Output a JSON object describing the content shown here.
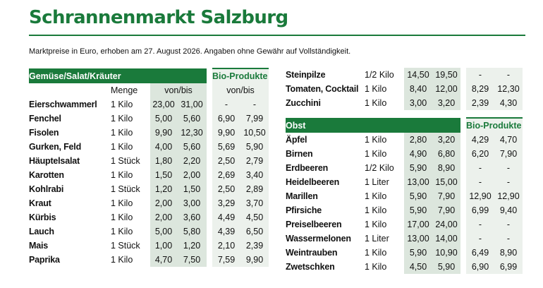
{
  "title": "Schrannenmarkt Salzburg",
  "subtitle": "Marktpreise in Euro, erhoben am 27. August 2026. Angaben ohne Gewähr auf Vollständigkeit.",
  "colors": {
    "brand": "#1a7a3b",
    "shade_dark": "#dce6dd",
    "shade_light": "#ecf1ec"
  },
  "veg": {
    "header": "Gemüse/Salat/Kräuter",
    "bio_header": "Bio-Produkte",
    "col_menge": "Menge",
    "col_vonbis": "von/bis",
    "col_bio_vonbis": "von/bis",
    "rows": [
      {
        "name": "Eierschwammerl",
        "menge": "1 Kilo",
        "von": "23,00",
        "bis": "31,00",
        "bio_von": "-",
        "bio_bis": "-"
      },
      {
        "name": "Fenchel",
        "menge": "1 Kilo",
        "von": "5,00",
        "bis": "5,60",
        "bio_von": "6,90",
        "bio_bis": "7,99"
      },
      {
        "name": "Fisolen",
        "menge": "1 Kilo",
        "von": "9,90",
        "bis": "12,30",
        "bio_von": "9,90",
        "bio_bis": "10,50"
      },
      {
        "name": "Gurken, Feld",
        "menge": "1 Kilo",
        "von": "4,00",
        "bis": "5,60",
        "bio_von": "5,69",
        "bio_bis": "5,90"
      },
      {
        "name": "Häuptelsalat",
        "menge": "1 Stück",
        "von": "1,80",
        "bis": "2,20",
        "bio_von": "2,50",
        "bio_bis": "2,79"
      },
      {
        "name": "Karotten",
        "menge": "1 Kilo",
        "von": "1,50",
        "bis": "2,00",
        "bio_von": "2,69",
        "bio_bis": "3,40"
      },
      {
        "name": "Kohlrabi",
        "menge": "1 Stück",
        "von": "1,20",
        "bis": "1,50",
        "bio_von": "2,50",
        "bio_bis": "2,89"
      },
      {
        "name": "Kraut",
        "menge": "1 Kilo",
        "von": "2,00",
        "bis": "3,00",
        "bio_von": "3,29",
        "bio_bis": "3,70"
      },
      {
        "name": "Kürbis",
        "menge": "1 Kilo",
        "von": "2,00",
        "bis": "3,60",
        "bio_von": "4,49",
        "bio_bis": "4,50"
      },
      {
        "name": "Lauch",
        "menge": "1 Kilo",
        "von": "5,00",
        "bis": "5,80",
        "bio_von": "4,39",
        "bio_bis": "6,50"
      },
      {
        "name": "Mais",
        "menge": "1 Stück",
        "von": "1,00",
        "bis": "1,20",
        "bio_von": "2,10",
        "bio_bis": "2,39"
      },
      {
        "name": "Paprika",
        "menge": "1 Kilo",
        "von": "4,70",
        "bis": "7,50",
        "bio_von": "7,59",
        "bio_bis": "9,90"
      }
    ]
  },
  "extra_veg": {
    "rows": [
      {
        "name": "Steinpilze",
        "menge": "1/2 Kilo",
        "von": "14,50",
        "bis": "19,50",
        "bio_von": "-",
        "bio_bis": "-"
      },
      {
        "name": "Tomaten, Cocktail",
        "menge": "1 Kilo",
        "von": "8,40",
        "bis": "12,00",
        "bio_von": "8,29",
        "bio_bis": "12,30"
      },
      {
        "name": "Zucchini",
        "menge": "1 Kilo",
        "von": "3,00",
        "bis": "3,20",
        "bio_von": "2,39",
        "bio_bis": "4,30"
      }
    ]
  },
  "fruit": {
    "header": "Obst",
    "bio_header": "Bio-Produkte",
    "rows": [
      {
        "name": "Äpfel",
        "menge": "1 Kilo",
        "von": "2,80",
        "bis": "3,20",
        "bio_von": "4,29",
        "bio_bis": "4,70"
      },
      {
        "name": "Birnen",
        "menge": "1 Kilo",
        "von": "4,90",
        "bis": "6,80",
        "bio_von": "6,20",
        "bio_bis": "7,90"
      },
      {
        "name": "Erdbeeren",
        "menge": "1/2 Kilo",
        "von": "5,90",
        "bis": "8,90",
        "bio_von": "-",
        "bio_bis": "-"
      },
      {
        "name": "Heidelbeeren",
        "menge": "1 Liter",
        "von": "13,00",
        "bis": "15,00",
        "bio_von": "-",
        "bio_bis": "-"
      },
      {
        "name": "Marillen",
        "menge": "1 Kilo",
        "von": "5,90",
        "bis": "7,90",
        "bio_von": "12,90",
        "bio_bis": "12,90"
      },
      {
        "name": "Pfirsiche",
        "menge": "1 Kilo",
        "von": "5,90",
        "bis": "7,90",
        "bio_von": "6,99",
        "bio_bis": "9,40"
      },
      {
        "name": "Preiselbeeren",
        "menge": "1 Kilo",
        "von": "17,00",
        "bis": "24,00",
        "bio_von": "-",
        "bio_bis": "-"
      },
      {
        "name": "Wassermelonen",
        "menge": "1 Liter",
        "von": "13,00",
        "bis": "14,00",
        "bio_von": "-",
        "bio_bis": "-"
      },
      {
        "name": "Weintrauben",
        "menge": "1 Kilo",
        "von": "5,90",
        "bis": "10,90",
        "bio_von": "6,49",
        "bio_bis": "8,90"
      },
      {
        "name": "Zwetschken",
        "menge": "1 Kilo",
        "von": "4,50",
        "bis": "5,90",
        "bio_von": "6,90",
        "bio_bis": "6,99"
      }
    ]
  }
}
